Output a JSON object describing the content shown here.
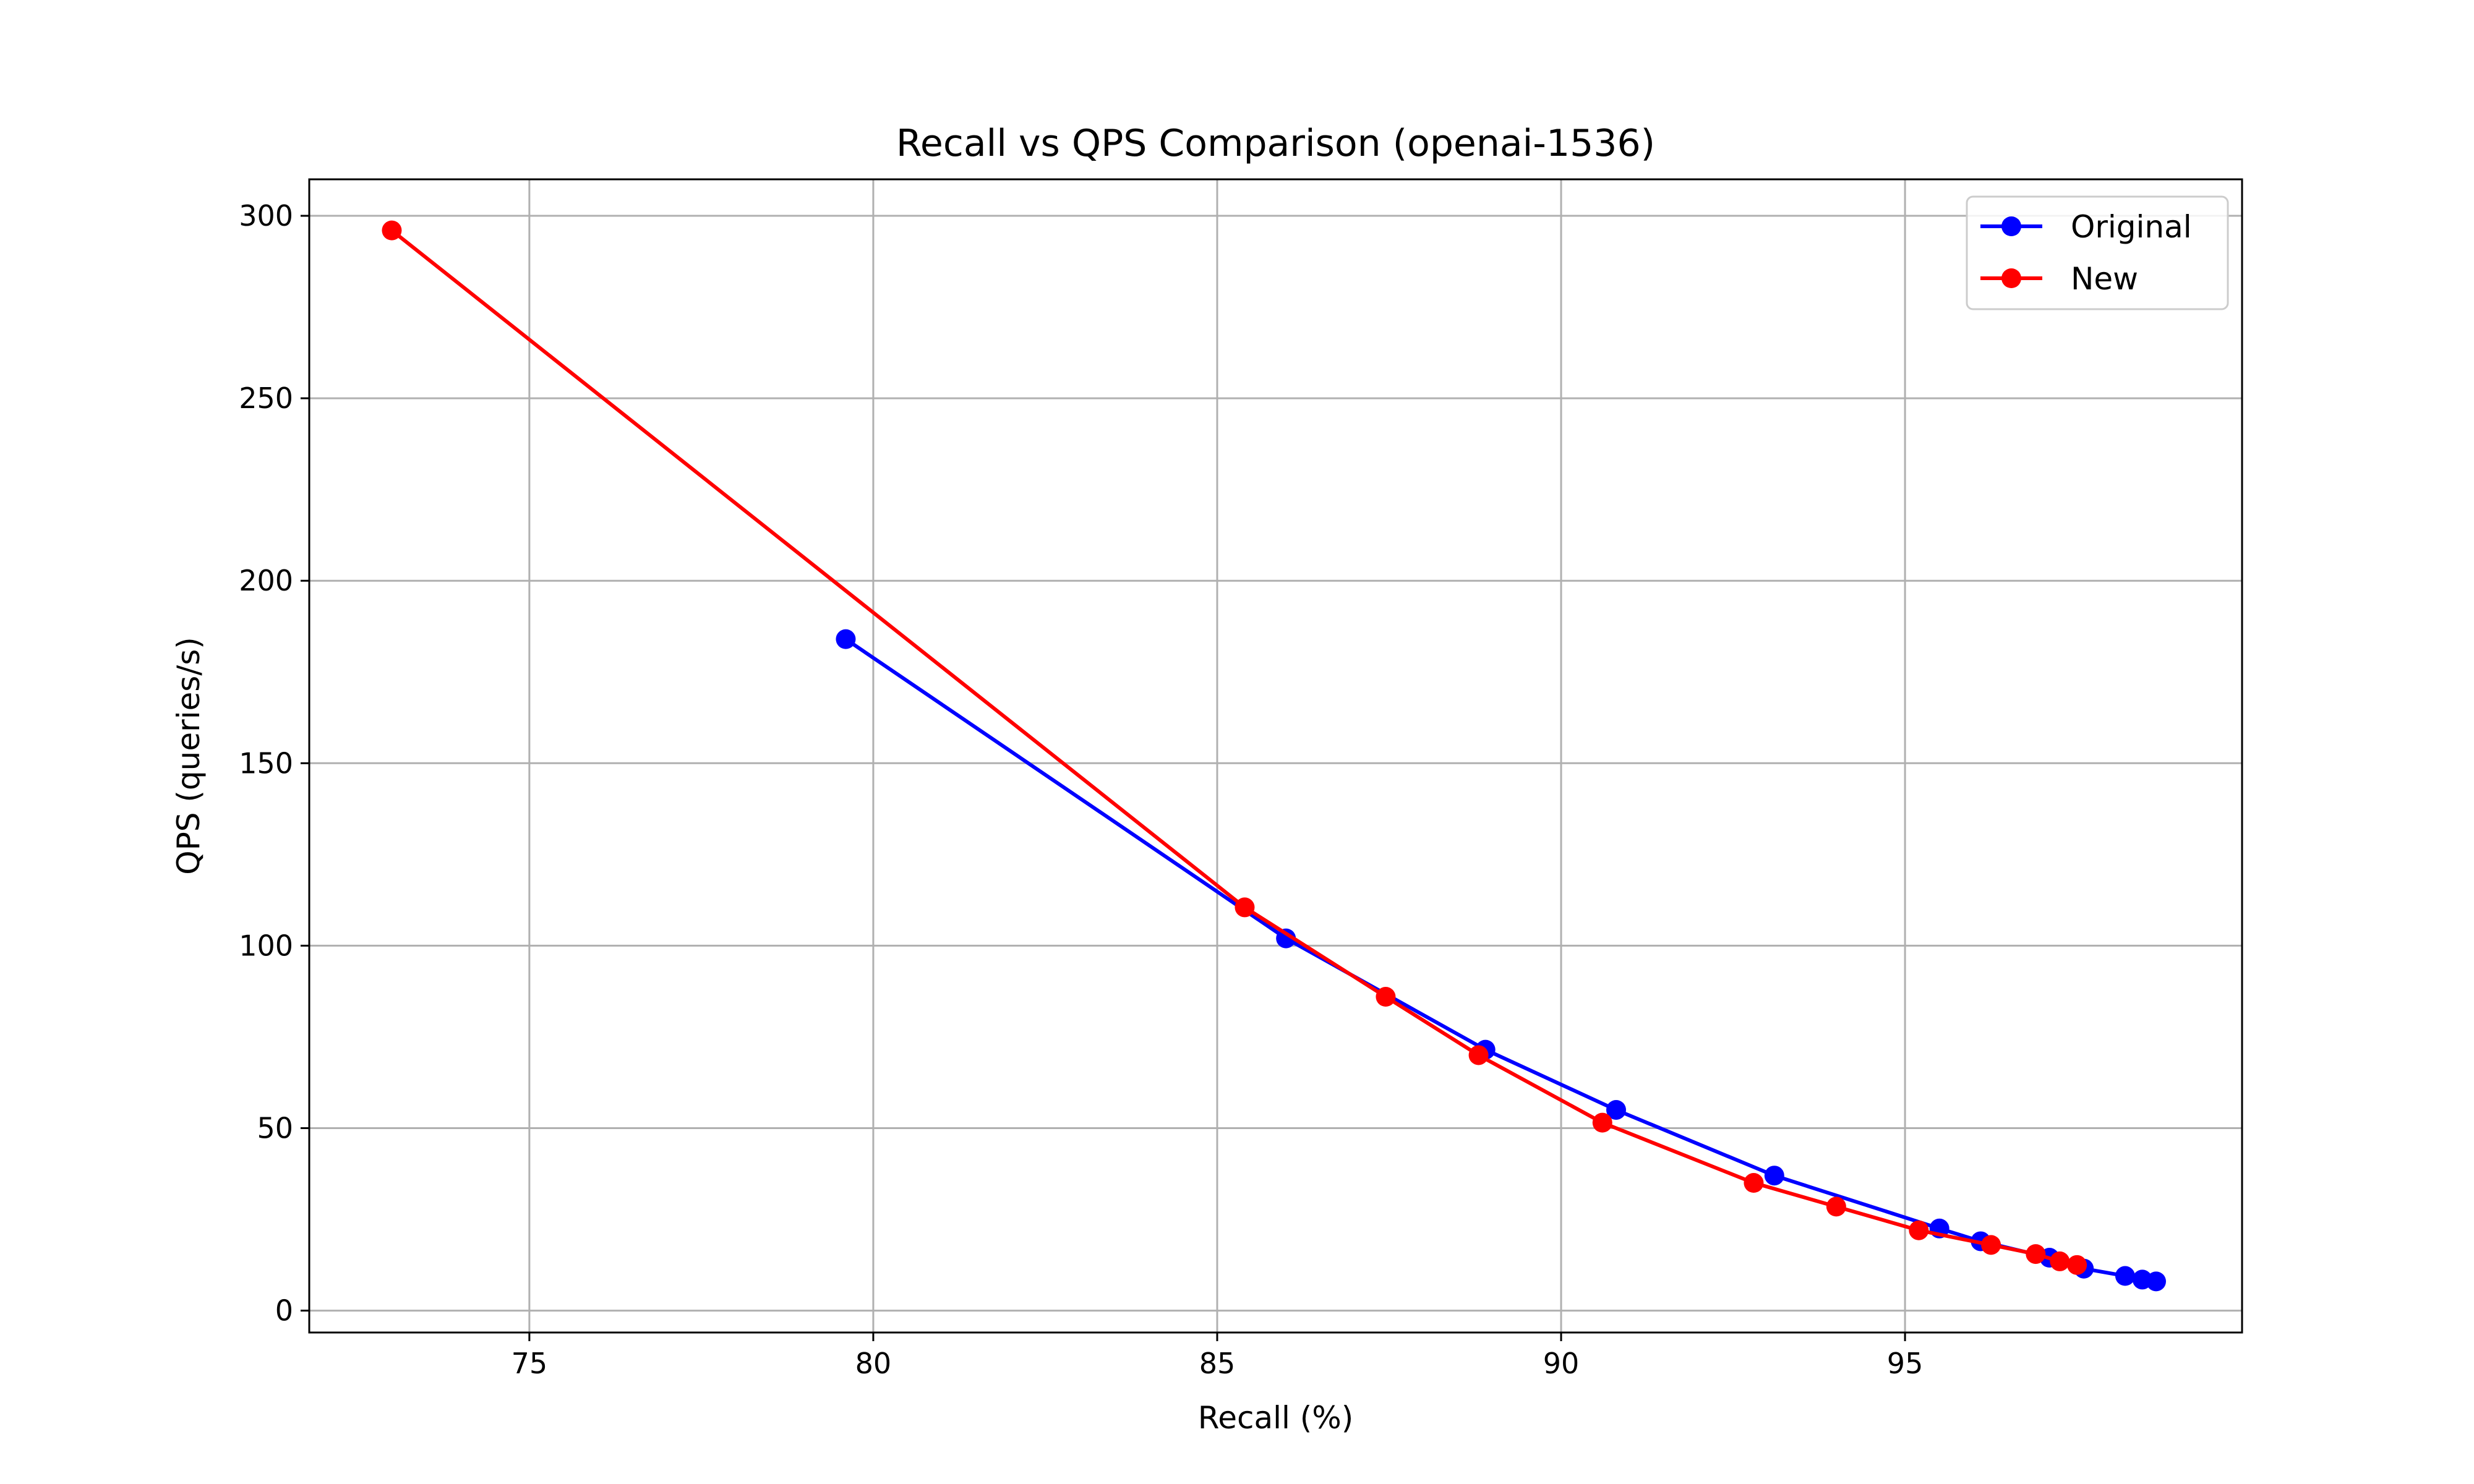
{
  "chart_data": {
    "type": "line",
    "title": "Recall vs QPS Comparison (openai-1536)",
    "xlabel": "Recall (%)",
    "ylabel": "QPS (queries/s)",
    "xlim": [
      71.8,
      99.9
    ],
    "ylim": [
      -6,
      310
    ],
    "xticks": [
      75,
      80,
      85,
      90,
      95
    ],
    "yticks": [
      0,
      50,
      100,
      150,
      200,
      250,
      300
    ],
    "grid": true,
    "legend_position": "top-right",
    "series": [
      {
        "name": "Original",
        "color": "#0000ff",
        "points": [
          {
            "x": 79.6,
            "y": 184
          },
          {
            "x": 86.0,
            "y": 102
          },
          {
            "x": 88.9,
            "y": 71.5
          },
          {
            "x": 90.8,
            "y": 55
          },
          {
            "x": 93.1,
            "y": 37
          },
          {
            "x": 95.5,
            "y": 22.5
          },
          {
            "x": 96.1,
            "y": 19
          },
          {
            "x": 97.1,
            "y": 14.5
          },
          {
            "x": 97.6,
            "y": 11.5
          },
          {
            "x": 98.2,
            "y": 9.5
          },
          {
            "x": 98.45,
            "y": 8.5
          },
          {
            "x": 98.65,
            "y": 8
          }
        ]
      },
      {
        "name": "New",
        "color": "#ff0000",
        "points": [
          {
            "x": 73.0,
            "y": 296
          },
          {
            "x": 85.4,
            "y": 110.5
          },
          {
            "x": 87.45,
            "y": 86
          },
          {
            "x": 88.8,
            "y": 70
          },
          {
            "x": 90.6,
            "y": 51.5
          },
          {
            "x": 92.8,
            "y": 35
          },
          {
            "x": 94.0,
            "y": 28.5
          },
          {
            "x": 95.2,
            "y": 22
          },
          {
            "x": 96.25,
            "y": 18
          },
          {
            "x": 96.9,
            "y": 15.5
          },
          {
            "x": 97.25,
            "y": 13.5
          },
          {
            "x": 97.5,
            "y": 12.5
          }
        ]
      }
    ]
  }
}
